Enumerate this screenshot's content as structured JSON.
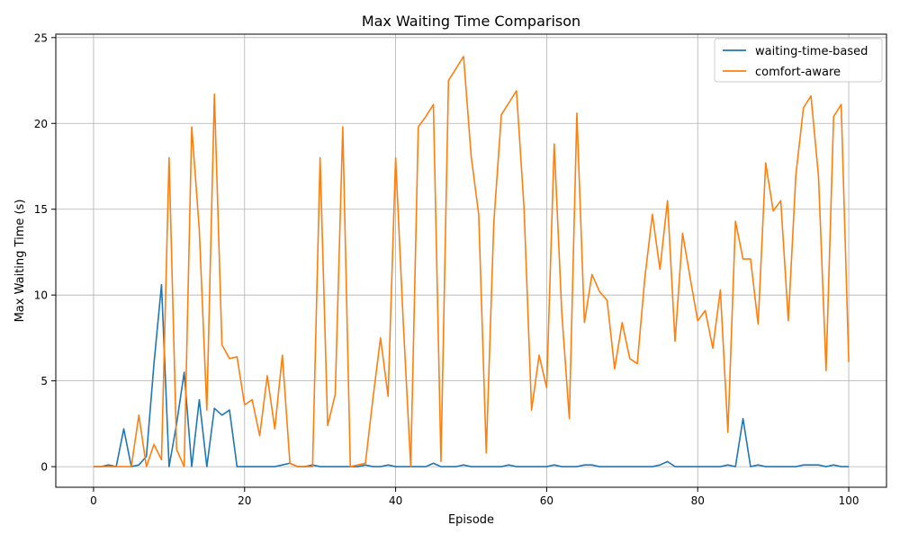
{
  "chart_data": {
    "type": "line",
    "title": "Max Waiting Time Comparison",
    "xlabel": "Episode",
    "ylabel": "Max Waiting Time (s)",
    "xlim": [
      -5,
      105
    ],
    "ylim": [
      -1.2,
      25.2
    ],
    "x_ticks": [
      0,
      20,
      40,
      60,
      80,
      100
    ],
    "y_ticks": [
      0,
      5,
      10,
      15,
      20,
      25
    ],
    "grid": true,
    "legend_position": "top-right",
    "series": [
      {
        "name": "waiting-time-based",
        "color": "#1f77b4",
        "x": [
          0,
          1,
          2,
          3,
          4,
          5,
          6,
          7,
          8,
          9,
          10,
          11,
          12,
          13,
          14,
          15,
          16,
          17,
          18,
          19,
          20,
          21,
          22,
          23,
          24,
          25,
          26,
          27,
          28,
          29,
          30,
          31,
          32,
          33,
          34,
          35,
          36,
          37,
          38,
          39,
          40,
          41,
          42,
          43,
          44,
          45,
          46,
          47,
          48,
          49,
          50,
          51,
          52,
          53,
          54,
          55,
          56,
          57,
          58,
          59,
          60,
          61,
          62,
          63,
          64,
          65,
          66,
          67,
          68,
          69,
          70,
          71,
          72,
          73,
          74,
          75,
          76,
          77,
          78,
          79,
          80,
          81,
          82,
          83,
          84,
          85,
          86,
          87,
          88,
          89,
          90,
          91,
          92,
          93,
          94,
          95,
          96,
          97,
          98,
          99,
          100
        ],
        "y": [
          0,
          0,
          0.1,
          0,
          2.2,
          0,
          0.1,
          0.6,
          6,
          10.6,
          0,
          2.5,
          5.5,
          0,
          3.9,
          0,
          3.4,
          3.0,
          3.3,
          0,
          0,
          0,
          0,
          0,
          0,
          0.1,
          0.2,
          0,
          0,
          0.1,
          0,
          0,
          0,
          0,
          0,
          0,
          0.1,
          0,
          0,
          0.1,
          0,
          0,
          0,
          0,
          0,
          0.2,
          0,
          0,
          0,
          0.1,
          0,
          0,
          0,
          0,
          0,
          0.1,
          0,
          0,
          0,
          0,
          0,
          0.1,
          0,
          0,
          0,
          0.1,
          0.1,
          0,
          0,
          0,
          0,
          0,
          0,
          0,
          0,
          0.1,
          0.3,
          0,
          0,
          0,
          0,
          0,
          0,
          0,
          0.1,
          0,
          2.8,
          0,
          0.1,
          0,
          0,
          0,
          0,
          0,
          0.1,
          0.1,
          0.1,
          0,
          0.1,
          0,
          0
        ]
      },
      {
        "name": "comfort-aware",
        "color": "#ff7f0e",
        "x": [
          0,
          1,
          2,
          3,
          4,
          5,
          6,
          7,
          8,
          9,
          10,
          11,
          12,
          13,
          14,
          15,
          16,
          17,
          18,
          19,
          20,
          21,
          22,
          23,
          24,
          25,
          26,
          27,
          28,
          29,
          30,
          31,
          32,
          33,
          34,
          35,
          36,
          37,
          38,
          39,
          40,
          41,
          42,
          43,
          44,
          45,
          46,
          47,
          48,
          49,
          50,
          51,
          52,
          53,
          54,
          55,
          56,
          57,
          58,
          59,
          60,
          61,
          62,
          63,
          64,
          65,
          66,
          67,
          68,
          69,
          70,
          71,
          72,
          73,
          74,
          75,
          76,
          77,
          78,
          79,
          80,
          81,
          82,
          83,
          84,
          85,
          86,
          87,
          88,
          89,
          90,
          91,
          92,
          93,
          94,
          95,
          96,
          97,
          98,
          99,
          100
        ],
        "y": [
          0,
          0,
          0,
          0,
          0,
          0,
          3.0,
          0,
          1.3,
          0.4,
          18.0,
          1.0,
          0,
          19.8,
          13.8,
          3.3,
          21.7,
          7.1,
          6.3,
          6.4,
          3.6,
          3.9,
          1.8,
          5.3,
          2.2,
          6.5,
          0.2,
          0,
          0,
          0,
          18.0,
          2.4,
          4.2,
          19.8,
          0,
          0.1,
          0.2,
          4.0,
          7.5,
          4.1,
          18.0,
          8.5,
          0,
          19.8,
          20.4,
          21.1,
          0.3,
          22.5,
          23.2,
          23.9,
          18.1,
          14.7,
          0.8,
          14.2,
          20.5,
          21.2,
          21.9,
          15.1,
          3.3,
          6.5,
          4.6,
          18.8,
          9.0,
          2.8,
          20.6,
          8.4,
          11.2,
          10.2,
          9.7,
          5.7,
          8.4,
          6.3,
          6.0,
          11.0,
          14.7,
          11.5,
          15.5,
          7.3,
          13.6,
          11.0,
          8.5,
          9.1,
          6.9,
          10.3,
          2.0,
          14.3,
          12.1,
          12.1,
          8.3,
          17.7,
          14.9,
          15.5,
          8.5,
          17.0,
          20.9,
          21.6,
          16.9,
          5.6,
          20.4,
          21.1,
          6.1
        ]
      }
    ]
  }
}
